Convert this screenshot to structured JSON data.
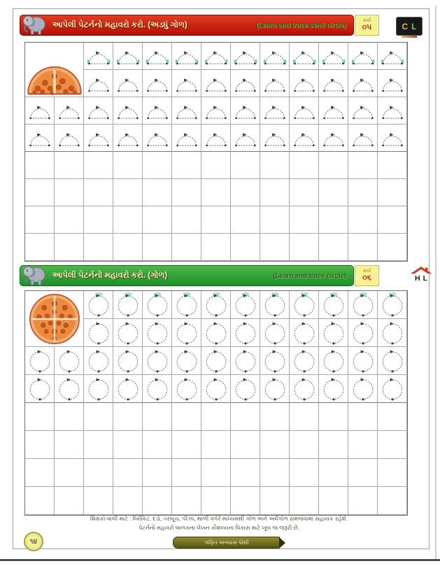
{
  "page": {
    "page_number": "૧૪",
    "book_banner": "ગણિત અભ્યાસ પોથી",
    "footer": {
      "line1": "શિક્ષકો-વાલી માટે : બિસ્કિટ, દડો, તરબૂચ, પીઝા, થાળી વગેરે માધ્યમથી ગોળ અને અર્ધગોળ સમજવામાં સહાયક રહેશે.",
      "line2": "પેટર્નનો મહાવરો બાળકના લેખન કૌશલ્યના વિકાસ માટે ખૂબ જ જરૂરી છે."
    },
    "colors": {
      "header1_red": "#c41407",
      "header2_green": "#1e8f2a",
      "trace_dot_gray": "#8c8c8c",
      "start_marker_teal": "#5bc8b8",
      "badge_yellow": "#f6f296"
    }
  },
  "sections": [
    {
      "header": {
        "title_gu": "આપેલી પેટર્નનો મહાવરો કરો. (અડધું ગોળ)",
        "title_en": "(Learn and trace semi circle)",
        "task_label": "કાર્ય",
        "task_no": "૦૫",
        "mode_letters": [
          "C",
          "L"
        ]
      },
      "grid": {
        "cols": 13,
        "rows": 8,
        "traced_rows": 4,
        "shape": "semicircle",
        "example": "half-pizza"
      }
    },
    {
      "header": {
        "title_gu": "આપેલી પેટર્નનો મહાવરો કરો. (ગોળ)",
        "title_en": "(Learn and trace circle)",
        "task_label": "કાર્ય",
        "task_no": "૦૬",
        "mode_letters": [
          "H",
          "L"
        ]
      },
      "grid": {
        "cols": 13,
        "rows": 8,
        "traced_rows": 4,
        "shape": "circle",
        "example": "full-pizza"
      }
    }
  ]
}
